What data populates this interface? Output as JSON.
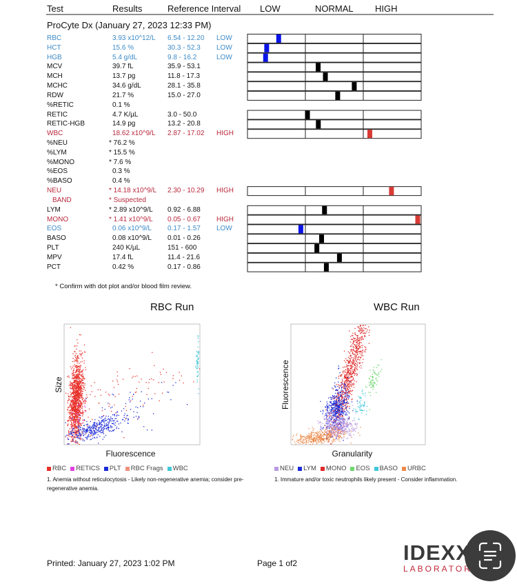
{
  "header": {
    "columns": [
      "Test",
      "Results",
      "Reference Interval",
      "LOW",
      "NORMAL",
      "HIGH"
    ],
    "instrument": "ProCyte Dx (January 27, 2023 12:33 PM)"
  },
  "rows": [
    {
      "test": "RBC",
      "result": "3.93 x10^12/L",
      "reference": "6.54 - 12.20",
      "flag": "LOW",
      "color": "#3b8ac8"
    },
    {
      "test": "HCT",
      "result": "15.6 %",
      "reference": "30.3 - 52.3",
      "flag": "LOW",
      "color": "#3b8ac8"
    },
    {
      "test": "HGB",
      "result": "5.4 g/dL",
      "reference": "9.8 - 16.2",
      "flag": "LOW",
      "color": "#3b8ac8"
    },
    {
      "test": "MCV",
      "result": "39.7 fL",
      "reference": "35.9 - 53.1"
    },
    {
      "test": "MCH",
      "result": "13.7 pg",
      "reference": "11.8 - 17.3"
    },
    {
      "test": "MCHC",
      "result": "34.6 g/dL",
      "reference": "28.1 - 35.8"
    },
    {
      "test": "RDW",
      "result": "21.7 %",
      "reference": "15.0 - 27.0"
    },
    {
      "test": "%RETIC",
      "result": "0.1 %"
    },
    {
      "test": "RETIC",
      "result": "4.7 K/µL",
      "reference": "3.0 - 50.0"
    },
    {
      "test": "RETIC-HGB",
      "result": "14.9 pg",
      "reference": "13.2 - 20.8"
    },
    {
      "test": "WBC",
      "result": "18.62 x10^9/L",
      "reference": "2.87 - 17.02",
      "flag": "HIGH",
      "color": "#b8283c"
    },
    {
      "test": "%NEU",
      "result": "* 76.2 %"
    },
    {
      "test": "%LYM",
      "result": "* 15.5 %"
    },
    {
      "test": "%MONO",
      "result": "* 7.6 %"
    },
    {
      "test": "%EOS",
      "result": "0.3 %"
    },
    {
      "test": "%BASO",
      "result": "0.4 %"
    },
    {
      "test": "NEU",
      "result": "* 14.18 x10^9/L",
      "reference": "2.30 - 10.29",
      "flag": "HIGH",
      "color": "#b8283c"
    },
    {
      "test": "BAND",
      "result": "* Suspected",
      "color": "#b8283c"
    },
    {
      "test": "LYM",
      "result": "* 2.89 x10^9/L",
      "reference": "0.92 - 6.88"
    },
    {
      "test": "MONO",
      "result": "* 1.41 x10^9/L",
      "reference": "0.05 - 0.67",
      "flag": "HIGH",
      "color": "#b8283c"
    },
    {
      "test": "EOS",
      "result": "0.06 x10^9/L",
      "reference": "0.17 - 1.57",
      "flag": "LOW",
      "color": "#3b8ac8"
    },
    {
      "test": "BASO",
      "result": "0.08 x10^9/L",
      "reference": "0.01 - 0.26"
    },
    {
      "test": "PLT",
      "result": "240 K/µL",
      "reference": "151 - 600"
    },
    {
      "test": "MPV",
      "result": "17.4 fL",
      "reference": "11.4 - 21.6"
    },
    {
      "test": "PCT",
      "result": "0.42 %",
      "reference": "0.17 - 0.86"
    }
  ],
  "footnote": "* Confirm with dot plot and/or blood film review.",
  "plots": [
    {
      "title": "RBC Run",
      "x_label": "Fluorescence",
      "y_label": "Size",
      "legend": [
        {
          "name": "RBC",
          "color": "#e8302a"
        },
        {
          "name": "RETICS",
          "color": "#e040e0"
        },
        {
          "name": "PLT",
          "color": "#1a2ad8"
        },
        {
          "name": "RBC Frags",
          "color": "#f0907a"
        },
        {
          "name": "WBC",
          "color": "#40c8d8"
        }
      ],
      "note": "1. Anemia without reticulocytosis - Likely non-regenerative anemia; consider pre-regenerative anemia."
    },
    {
      "title": "WBC Run",
      "x_label": "Granularity",
      "y_label": "Fluorescence",
      "legend": [
        {
          "name": "NEU",
          "color": "#b89ae0"
        },
        {
          "name": "LYM",
          "color": "#1a2ad8"
        },
        {
          "name": "MONO",
          "color": "#e02a2a"
        },
        {
          "name": "EOS",
          "color": "#70d870"
        },
        {
          "name": "BASO",
          "color": "#40c8d8"
        },
        {
          "name": "URBC",
          "color": "#ec8a4a"
        }
      ],
      "note": "1. Immature and/or toxic neutrophils likely present - Consider inflammation."
    }
  ],
  "footer": {
    "printed": "Printed: January 27, 2023 1:02 PM",
    "page": "Page 1 of2"
  },
  "logo": {
    "name": "IDEXX",
    "subtitle": "LABORATORIES"
  }
}
